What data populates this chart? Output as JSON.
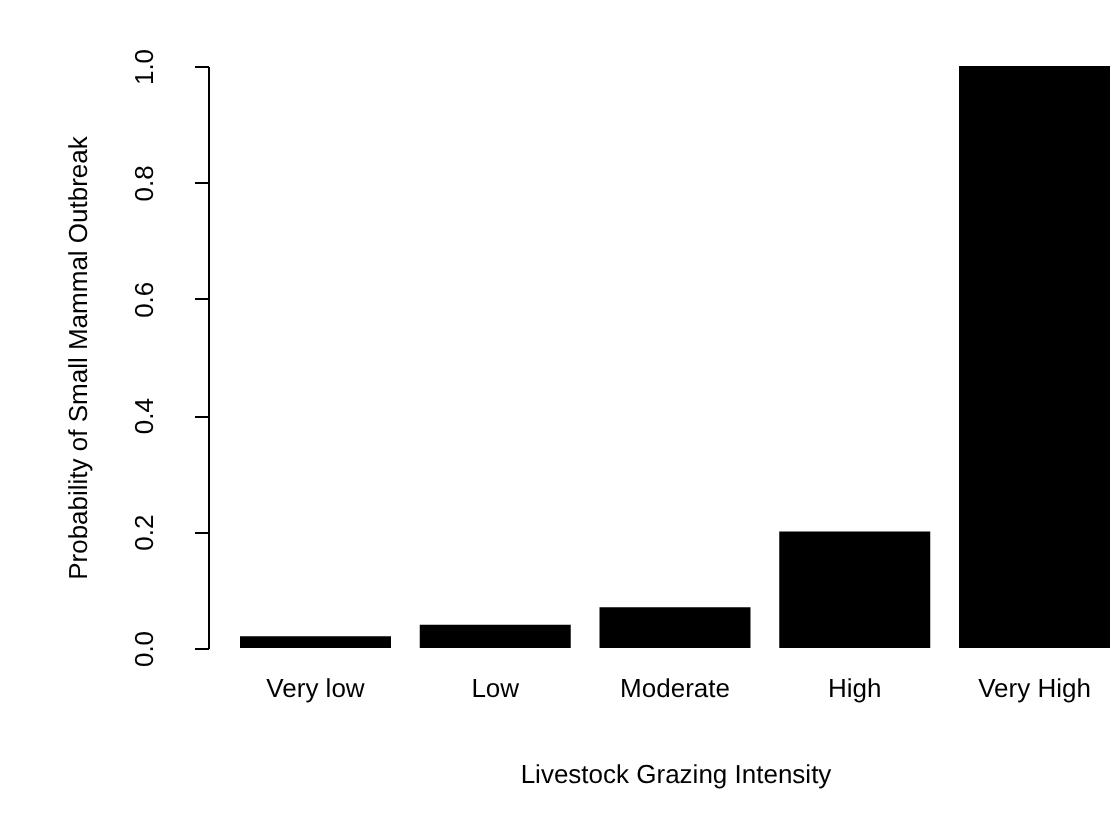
{
  "chart_data": {
    "type": "bar",
    "xlabel": "Livestock Grazing Intensity",
    "ylabel": "Probability of Small Mammal Outbreak",
    "categories": [
      "Very low",
      "Low",
      "Moderate",
      "High",
      "Very High"
    ],
    "values": [
      0.02,
      0.04,
      0.07,
      0.2,
      1.0
    ],
    "color": "#000000",
    "ylim": [
      0,
      1
    ],
    "yticks": [
      {
        "value": 0,
        "label": "0.0"
      },
      0.2,
      0.4,
      0.6,
      0.8,
      {
        "value": 1,
        "label": "1.0"
      }
    ],
    "grid": false
  }
}
